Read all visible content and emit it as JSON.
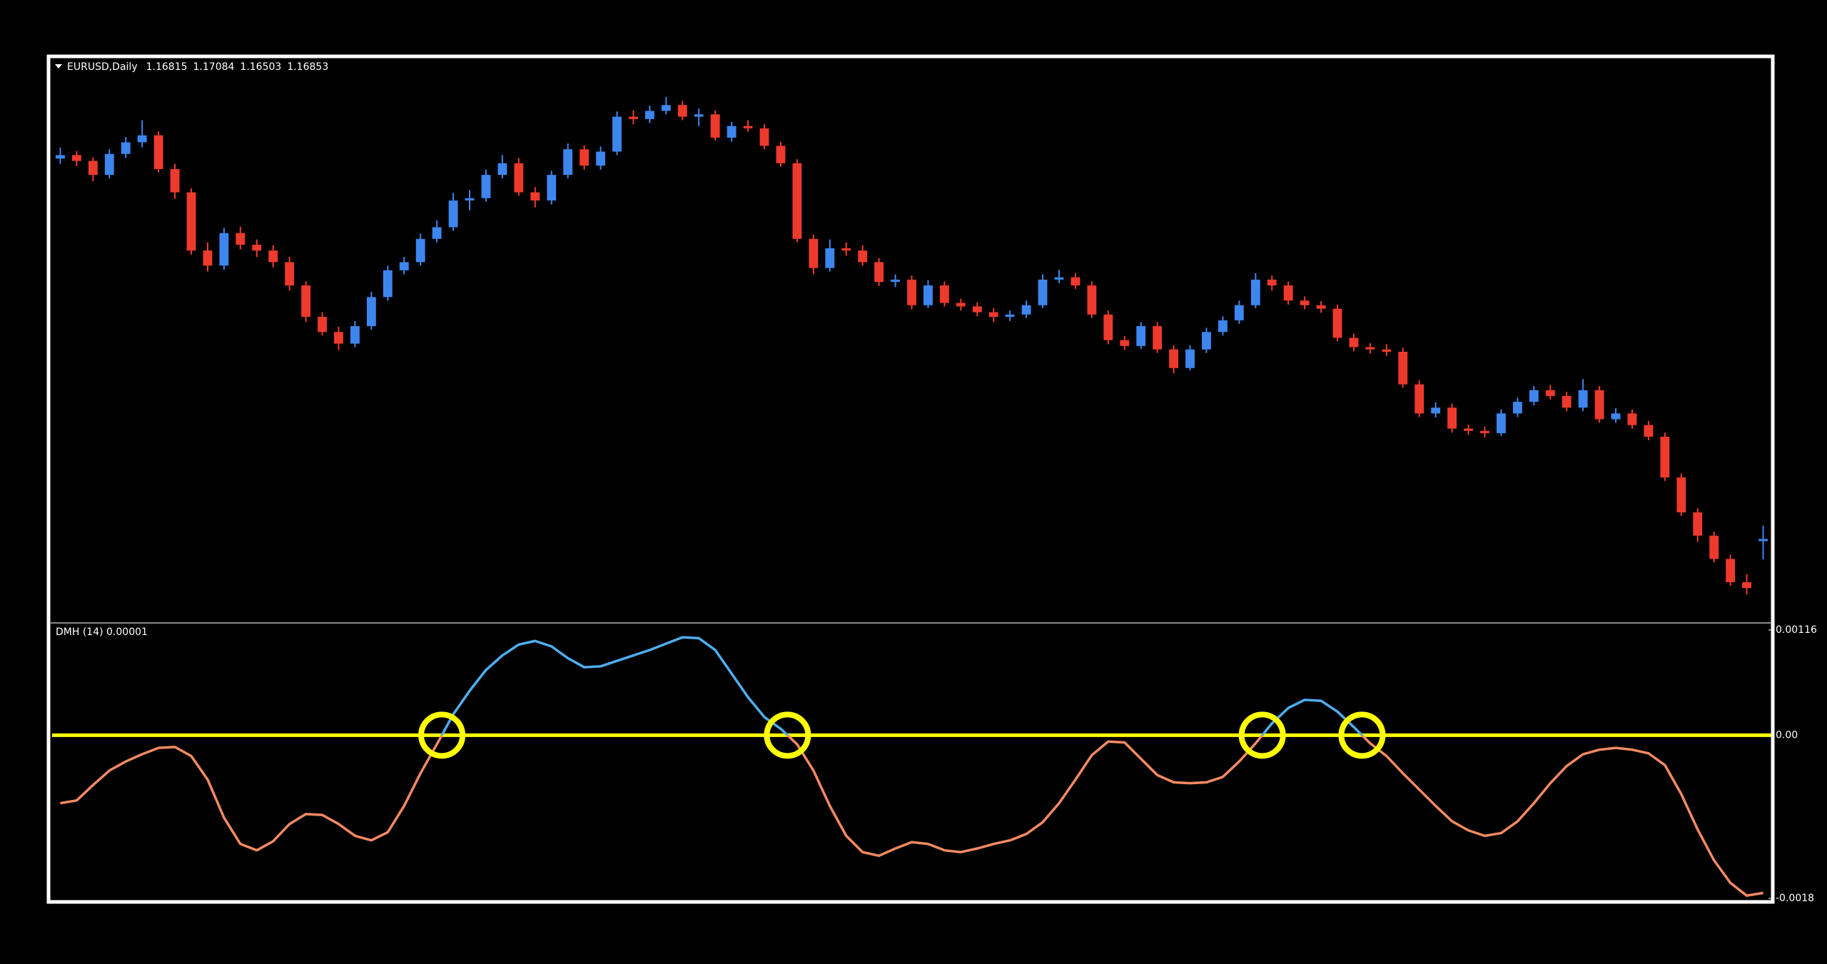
{
  "chart_data": [
    {
      "type": "candlestick",
      "title": "EURUSD,Daily",
      "open": [
        1.2339,
        1.2345,
        1.2335,
        1.2311,
        1.2347,
        1.2367,
        1.2379,
        1.2321,
        1.2281,
        1.2181,
        1.2155,
        1.2211,
        1.2191,
        1.2181,
        1.2161,
        1.2121,
        1.2067,
        1.2041,
        1.2021,
        1.2051,
        1.2101,
        1.2147,
        1.2161,
        1.2201,
        1.2221,
        1.2267,
        1.2271,
        1.2311,
        1.2331,
        1.2281,
        1.2267,
        1.2311,
        1.2355,
        1.2327,
        1.2351,
        1.2411,
        1.2407,
        1.2421,
        1.2431,
        1.2411,
        1.2415,
        1.2375,
        1.2395,
        1.2391,
        1.2361,
        1.2331,
        1.2201,
        1.2151,
        1.2185,
        1.2181,
        1.2161,
        1.2127,
        1.2131,
        1.2087,
        1.2121,
        1.2091,
        1.2085,
        1.2075,
        1.2067,
        1.2071,
        1.2087,
        1.2131,
        1.2135,
        1.2121,
        1.2071,
        1.2027,
        1.2017,
        1.2051,
        1.2011,
        1.1979,
        1.2011,
        1.2041,
        1.2061,
        1.2087,
        1.2131,
        1.2121,
        1.2095,
        1.2087,
        1.2081,
        1.2031,
        1.2015,
        1.2011,
        1.2007,
        1.1951,
        1.1901,
        1.1911,
        1.1875,
        1.1871,
        1.1867,
        1.1901,
        1.1921,
        1.1941,
        1.1931,
        1.1911,
        1.1941,
        1.1891,
        1.1901,
        1.1881,
        1.1861,
        1.1791,
        1.1731,
        1.1691,
        1.1651,
        1.1611,
        1.16815
      ],
      "high": [
        1.2358,
        1.2352,
        1.2341,
        1.2355,
        1.2376,
        1.2405,
        1.2386,
        1.233,
        1.2288,
        1.2195,
        1.222,
        1.2222,
        1.22,
        1.219,
        1.217,
        1.2128,
        1.2075,
        1.205,
        1.206,
        1.211,
        1.2155,
        1.217,
        1.221,
        1.2233,
        1.228,
        1.2285,
        1.232,
        1.2345,
        1.234,
        1.229,
        1.2318,
        1.2365,
        1.2362,
        1.236,
        1.242,
        1.2422,
        1.243,
        1.2445,
        1.2438,
        1.2425,
        1.2422,
        1.2402,
        1.2405,
        1.2398,
        1.2368,
        1.2338,
        1.2208,
        1.22,
        1.2195,
        1.219,
        1.2168,
        1.214,
        1.2138,
        1.213,
        1.2128,
        1.2098,
        1.2092,
        1.2082,
        1.2078,
        1.2095,
        1.214,
        1.2148,
        1.2142,
        1.2128,
        1.2078,
        1.2034,
        1.2058,
        1.2058,
        1.2018,
        1.2018,
        1.2048,
        1.2068,
        1.2095,
        1.2142,
        1.2138,
        1.2128,
        1.2102,
        1.2094,
        1.2088,
        1.2038,
        1.2022,
        1.202,
        1.2014,
        1.1958,
        1.192,
        1.1918,
        1.1882,
        1.1878,
        1.1908,
        1.1928,
        1.1948,
        1.195,
        1.1938,
        1.196,
        1.1948,
        1.191,
        1.1908,
        1.1888,
        1.1868,
        1.1798,
        1.1738,
        1.1698,
        1.1658,
        1.1625,
        1.17084
      ],
      "low": [
        1.233,
        1.2326,
        1.23,
        1.2305,
        1.234,
        1.2358,
        1.2315,
        1.227,
        1.2174,
        1.2145,
        1.2148,
        1.2183,
        1.217,
        1.2152,
        1.2112,
        1.2058,
        1.2035,
        1.201,
        1.2015,
        1.2045,
        1.2095,
        1.214,
        1.2155,
        1.2195,
        1.2215,
        1.225,
        1.2265,
        1.2305,
        1.2275,
        1.2255,
        1.226,
        1.2305,
        1.232,
        1.232,
        1.2345,
        1.2398,
        1.24,
        1.2415,
        1.2405,
        1.2395,
        1.237,
        1.2368,
        1.2385,
        1.2355,
        1.2325,
        1.2195,
        1.214,
        1.2145,
        1.2172,
        1.2155,
        1.212,
        1.2118,
        1.208,
        1.2082,
        1.2085,
        1.2078,
        1.2068,
        1.2058,
        1.206,
        1.2065,
        1.2082,
        1.2125,
        1.2115,
        1.2065,
        1.202,
        1.201,
        1.2012,
        1.2005,
        1.197,
        1.1975,
        1.2005,
        1.2035,
        1.2055,
        1.2082,
        1.2112,
        1.2088,
        1.208,
        1.2074,
        1.2025,
        1.2008,
        1.2004,
        1.2,
        1.1945,
        1.1895,
        1.1894,
        1.1868,
        1.1864,
        1.186,
        1.1862,
        1.1895,
        1.1915,
        1.1925,
        1.1905,
        1.1905,
        1.1885,
        1.1885,
        1.1875,
        1.1855,
        1.1785,
        1.1725,
        1.168,
        1.1645,
        1.1605,
        1.159,
        1.16503
      ],
      "close": [
        1.2345,
        1.2335,
        1.2311,
        1.2347,
        1.2367,
        1.2379,
        1.2321,
        1.2281,
        1.2181,
        1.2155,
        1.2211,
        1.2191,
        1.2181,
        1.2161,
        1.2121,
        1.2067,
        1.2041,
        1.2021,
        1.2051,
        1.2101,
        1.2147,
        1.2161,
        1.2201,
        1.2221,
        1.2267,
        1.2271,
        1.2311,
        1.2331,
        1.2281,
        1.2267,
        1.2311,
        1.2355,
        1.2327,
        1.2351,
        1.2411,
        1.2407,
        1.2421,
        1.2431,
        1.2411,
        1.2415,
        1.2375,
        1.2395,
        1.2391,
        1.2361,
        1.2331,
        1.2201,
        1.2151,
        1.2185,
        1.2181,
        1.2161,
        1.2127,
        1.2131,
        1.2087,
        1.2121,
        1.2091,
        1.2085,
        1.2075,
        1.2067,
        1.2071,
        1.2087,
        1.2131,
        1.2135,
        1.2121,
        1.2071,
        1.2027,
        1.2017,
        1.2051,
        1.2011,
        1.1979,
        1.2011,
        1.2041,
        1.2061,
        1.2087,
        1.2131,
        1.2121,
        1.2095,
        1.2087,
        1.2081,
        1.2031,
        1.2015,
        1.2011,
        1.2007,
        1.1951,
        1.1901,
        1.1911,
        1.1875,
        1.1871,
        1.1867,
        1.1901,
        1.1921,
        1.1941,
        1.1931,
        1.1911,
        1.1941,
        1.1891,
        1.1901,
        1.1881,
        1.1861,
        1.1791,
        1.1731,
        1.1691,
        1.1651,
        1.1611,
        1.1601,
        1.16853
      ],
      "ylim": [
        1.1541,
        1.2511
      ],
      "colors": {
        "up": "#3d86ee",
        "down": "#ee3a2c"
      }
    },
    {
      "type": "line",
      "title": "DMH (14) 0.00001",
      "values": [
        -0.00075,
        -0.00072,
        -0.00055,
        -0.00039,
        -0.00029,
        -0.00021,
        -0.00014,
        -0.00013,
        -0.00023,
        -0.00049,
        -0.00091,
        -0.0012,
        -0.00127,
        -0.00117,
        -0.00098,
        -0.00087,
        -0.00088,
        -0.00098,
        -0.00111,
        -0.00116,
        -0.00107,
        -0.00078,
        -0.00042,
        -0.0001,
        0.00023,
        0.00049,
        0.00072,
        0.00088,
        0.001,
        0.00104,
        0.00098,
        0.00085,
        0.00075,
        0.00076,
        0.00082,
        0.00088,
        0.00094,
        0.00101,
        0.00108,
        0.00107,
        0.00094,
        0.00068,
        0.00042,
        0.0002,
        7e-05,
        -0.0001,
        -0.00039,
        -0.00078,
        -0.00111,
        -0.00129,
        -0.00133,
        -0.00125,
        -0.00118,
        -0.0012,
        -0.00127,
        -0.00129,
        -0.00125,
        -0.0012,
        -0.00116,
        -0.00109,
        -0.00096,
        -0.00075,
        -0.00049,
        -0.00022,
        -7e-05,
        -8e-05,
        -0.00026,
        -0.00044,
        -0.00052,
        -0.00053,
        -0.00052,
        -0.00046,
        -0.00029,
        -9e-05,
        0.00013,
        0.0003,
        0.00039,
        0.00038,
        0.00026,
        9e-05,
        -9e-05,
        -0.00023,
        -0.00042,
        -0.0006,
        -0.00078,
        -0.00095,
        -0.00105,
        -0.00111,
        -0.00108,
        -0.00095,
        -0.00075,
        -0.00053,
        -0.00034,
        -0.00021,
        -0.00016,
        -0.00014,
        -0.00016,
        -0.0002,
        -0.00033,
        -0.00065,
        -0.00104,
        -0.00138,
        -0.00163,
        -0.00177,
        -0.00174
      ],
      "ylim": [
        -0.0018,
        0.00116
      ],
      "yticks": [
        0.00116,
        {
          "value": 0,
          "label": "0.00"
        },
        -0.0018
      ],
      "colors": {
        "above": "#4eaef0",
        "below": "#f58a62"
      },
      "levels": [
        0
      ],
      "level_color": "#ffff00",
      "crossing_markers": true,
      "marker_color": "#ffff00"
    }
  ]
}
